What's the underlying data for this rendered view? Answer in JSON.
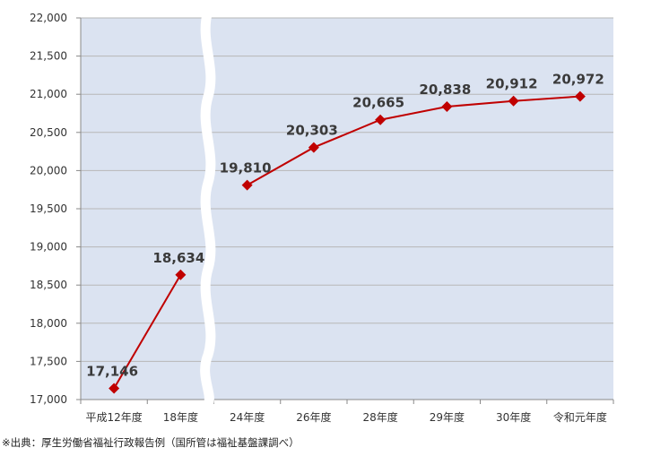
{
  "chart_data": {
    "type": "line",
    "categories": [
      "平成12年度",
      "18年度",
      "24年度",
      "26年度",
      "28年度",
      "29年度",
      "30年度",
      "令和元年度"
    ],
    "values": [
      17146,
      18634,
      19810,
      20303,
      20665,
      20838,
      20912,
      20972
    ],
    "data_labels": [
      "17,146",
      "18,634",
      "19,810",
      "20,303",
      "20,665",
      "20,838",
      "20,912",
      "20,972"
    ],
    "ylim": [
      17000,
      22000
    ],
    "yticks": [
      "17,000",
      "17,500",
      "18,000",
      "18,500",
      "19,000",
      "19,500",
      "20,000",
      "20,500",
      "21,000",
      "21,500",
      "22,000"
    ],
    "grid": true,
    "axis_break_after_index": 1,
    "colors": {
      "plot_bg": "#dbe3f1",
      "line": "#c00000",
      "marker": "#c00000",
      "grid": "#b7b7b7"
    }
  },
  "footnote": "※出典：厚生労働省福祉行政報告例（国所管は福祉基盤課調べ）"
}
